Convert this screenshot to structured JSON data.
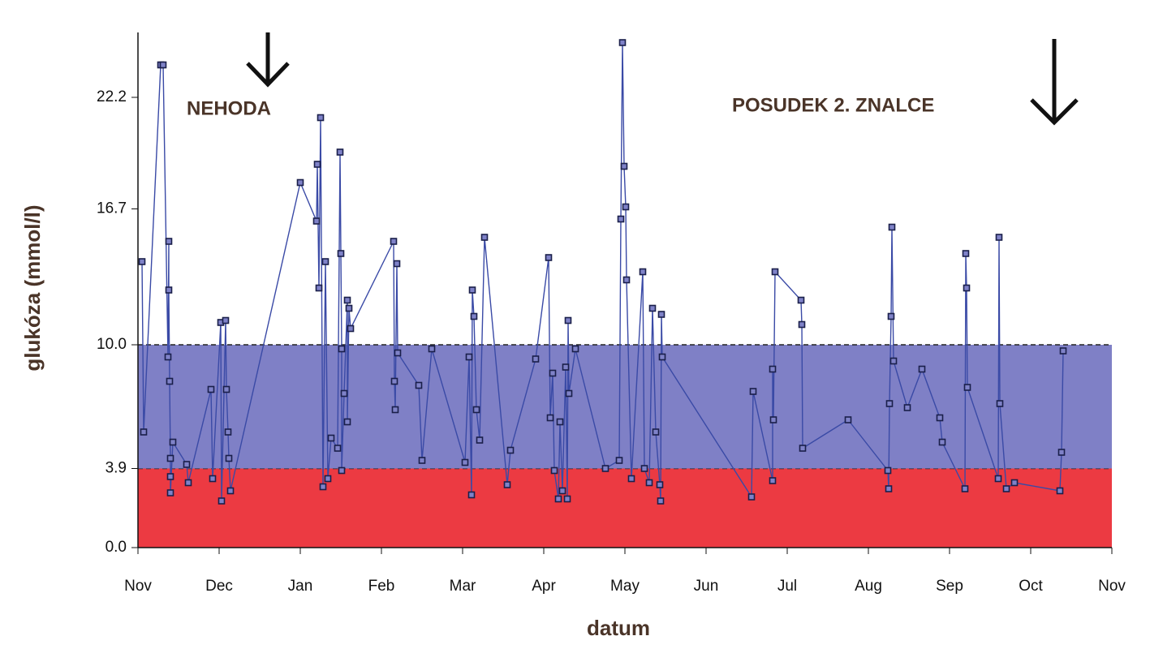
{
  "chart_data": {
    "type": "line",
    "x_label": "datum",
    "y_label": "glukóza (mmol/l)",
    "annotations": [
      "NEHODA",
      "POSUDEK 2. ZNALCE"
    ],
    "xlim": [
      0,
      12
    ],
    "xticks": [
      {
        "value": 0,
        "label": "Nov"
      },
      {
        "value": 1,
        "label": "Dec"
      },
      {
        "value": 2,
        "label": "Jan"
      },
      {
        "value": 3,
        "label": "Feb"
      },
      {
        "value": 4,
        "label": "Mar"
      },
      {
        "value": 5,
        "label": "Apr"
      },
      {
        "value": 6,
        "label": "May"
      },
      {
        "value": 7,
        "label": "Jun"
      },
      {
        "value": 8,
        "label": "Jul"
      },
      {
        "value": 9,
        "label": "Aug"
      },
      {
        "value": 10,
        "label": "Sep"
      },
      {
        "value": 11,
        "label": "Oct"
      },
      {
        "value": 12,
        "label": "Nov"
      }
    ],
    "ylim": [
      0,
      25.4
    ],
    "yticks": [
      {
        "value": 0,
        "label": "0.0"
      },
      3.9,
      {
        "value": 10,
        "label": "10.0"
      },
      16.7,
      22.2
    ],
    "bands": [
      {
        "from": 0,
        "to": 3.9,
        "color": "#ec3a42"
      },
      {
        "from": 3.9,
        "to": 10,
        "color": "#7f80c6"
      }
    ],
    "x": [
      0.05,
      0.07,
      0.28,
      0.31,
      0.37,
      0.38,
      0.38,
      0.39,
      0.4,
      0.4,
      0.4,
      0.43,
      0.6,
      0.62,
      0.9,
      0.92,
      1.02,
      1.03,
      1.08,
      1.09,
      1.11,
      1.12,
      1.14,
      2.0,
      2.2,
      2.21,
      2.23,
      2.25,
      2.28,
      2.31,
      2.34,
      2.38,
      2.46,
      2.49,
      2.5,
      2.51,
      2.51,
      2.54,
      2.58,
      2.58,
      2.6,
      2.62,
      3.15,
      3.16,
      3.17,
      3.19,
      3.2,
      3.46,
      3.5,
      3.62,
      4.03,
      4.08,
      4.11,
      4.12,
      4.14,
      4.17,
      4.21,
      4.27,
      4.55,
      4.59,
      4.9,
      5.06,
      5.08,
      5.11,
      5.13,
      5.18,
      5.2,
      5.23,
      5.27,
      5.29,
      5.3,
      5.31,
      5.39,
      5.76,
      5.93,
      5.95,
      5.97,
      5.99,
      6.01,
      6.02,
      6.08,
      6.22,
      6.24,
      6.3,
      6.34,
      6.38,
      6.43,
      6.44,
      6.45,
      6.46,
      7.56,
      7.58,
      7.82,
      7.82,
      7.83,
      7.85,
      8.17,
      8.18,
      8.19,
      8.75,
      9.24,
      9.25,
      9.26,
      9.28,
      9.29,
      9.31,
      9.48,
      9.66,
      9.88,
      9.91,
      10.19,
      10.2,
      10.21,
      10.22,
      10.6,
      10.61,
      10.62,
      10.7,
      10.8,
      11.36,
      11.38,
      11.4
    ],
    "series": [
      {
        "color": "#3a4aa6",
        "values": [
          14.1,
          5.7,
          23.8,
          23.8,
          9.4,
          15.1,
          12.7,
          8.2,
          4.4,
          3.5,
          2.7,
          5.2,
          4.1,
          3.2,
          7.8,
          3.4,
          11.1,
          2.3,
          11.2,
          7.8,
          5.7,
          4.4,
          2.8,
          18.0,
          16.1,
          18.9,
          12.8,
          21.2,
          3.0,
          14.1,
          3.4,
          5.4,
          4.9,
          19.5,
          14.5,
          9.8,
          3.8,
          7.6,
          12.2,
          6.2,
          11.8,
          10.8,
          15.1,
          8.2,
          6.8,
          14.0,
          9.6,
          8.0,
          4.3,
          9.8,
          4.2,
          9.4,
          2.6,
          12.7,
          11.4,
          6.8,
          5.3,
          15.3,
          3.1,
          4.8,
          9.3,
          14.3,
          6.4,
          8.6,
          3.8,
          2.4,
          6.2,
          2.8,
          8.9,
          2.4,
          11.2,
          7.6,
          9.8,
          3.9,
          4.3,
          16.2,
          24.9,
          18.8,
          16.8,
          13.2,
          3.4,
          13.6,
          3.9,
          3.2,
          11.8,
          5.7,
          3.1,
          2.3,
          11.5,
          9.4,
          2.5,
          7.7,
          3.3,
          8.8,
          6.3,
          13.6,
          12.2,
          11.0,
          4.9,
          6.3,
          3.8,
          2.9,
          7.1,
          11.4,
          15.8,
          9.2,
          6.9,
          8.8,
          6.4,
          5.2,
          2.9,
          14.5,
          12.8,
          7.9,
          3.4,
          15.3,
          7.1,
          2.9,
          3.2,
          2.8,
          4.7,
          9.7
        ]
      }
    ]
  }
}
